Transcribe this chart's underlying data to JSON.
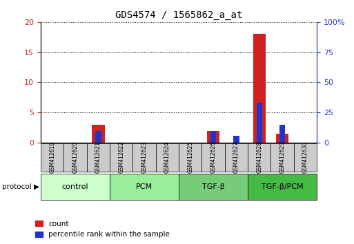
{
  "title": "GDS4574 / 1565862_a_at",
  "samples": [
    "GSM412619",
    "GSM412620",
    "GSM412621",
    "GSM412622",
    "GSM412623",
    "GSM412624",
    "GSM412625",
    "GSM412626",
    "GSM412627",
    "GSM412628",
    "GSM412629",
    "GSM412630"
  ],
  "count_values": [
    0,
    0,
    3.0,
    0,
    0,
    0,
    0,
    2.0,
    0,
    18.0,
    1.5,
    0
  ],
  "percentile_values": [
    0,
    0,
    10,
    0,
    0,
    0,
    0,
    10,
    6,
    33,
    15,
    0
  ],
  "groups": [
    {
      "label": "control",
      "start": 0,
      "end": 3,
      "color": "#ccffcc"
    },
    {
      "label": "PCM",
      "start": 3,
      "end": 6,
      "color": "#99ee99"
    },
    {
      "label": "TGF-β",
      "start": 6,
      "end": 9,
      "color": "#77cc77"
    },
    {
      "label": "TGF-β/PCM",
      "start": 9,
      "end": 12,
      "color": "#44bb44"
    }
  ],
  "ylim_left": [
    0,
    20
  ],
  "ylim_right": [
    0,
    100
  ],
  "yticks_left": [
    0,
    5,
    10,
    15,
    20
  ],
  "yticks_right": [
    0,
    25,
    50,
    75,
    100
  ],
  "red_color": "#cc2222",
  "blue_color": "#2233cc",
  "grid_color": "#000000",
  "bg_color": "#ffffff",
  "sample_box_color": "#cccccc",
  "left_axis_color": "#cc2222",
  "right_axis_color": "#2233cc"
}
